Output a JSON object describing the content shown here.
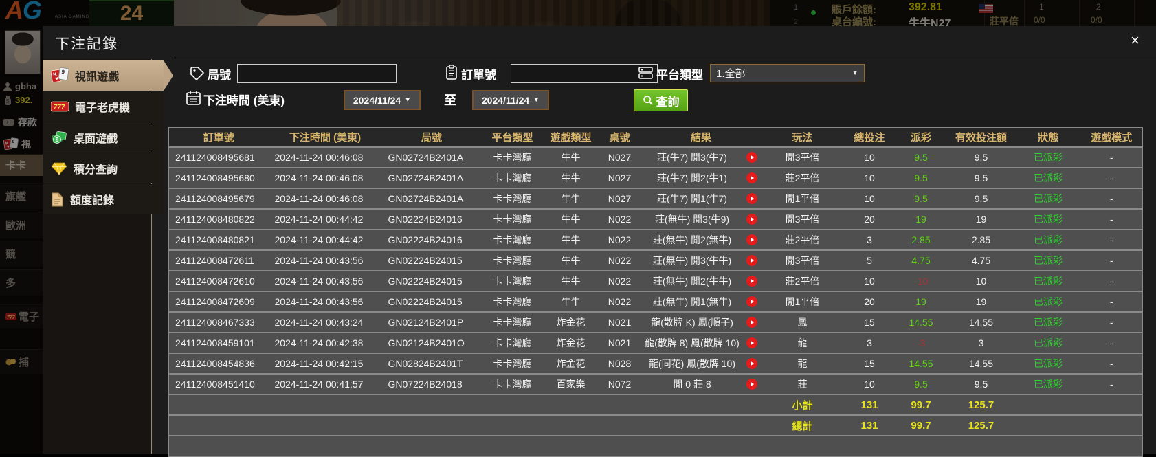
{
  "colors": {
    "gold_header": "#d8b66e",
    "payout_green": "#5fd413",
    "payout_red": "#a23535",
    "status_green": "#30d330",
    "summary_yellow": "#e8e41c",
    "active_tan": "#c2aa8a",
    "search_green": "#65b81f"
  },
  "background": {
    "logo": {
      "a": "A",
      "g": "G",
      "sub": "ASIA GAMING"
    },
    "timer": "24",
    "scoreboard": {
      "row_num_1": "1",
      "row_num_2": "2",
      "balance_label": "賬戶餘額:",
      "balance_value": "392.81",
      "table_label": "桌台編號:",
      "table_value": "牛牛N27",
      "bet_label": "莊平倍",
      "col_1": "1",
      "col_2": "2",
      "val_1": "0/0",
      "val_2": "0/0"
    },
    "sidebar": {
      "username": "gbha",
      "balance": "392.",
      "deposit_label": "存款",
      "video_label": "視",
      "items": [
        {
          "label": "卡卡"
        },
        {
          "label": "旗艦"
        },
        {
          "label": "歐洲"
        },
        {
          "label": "競"
        },
        {
          "label": "多"
        },
        {
          "label": "電子"
        },
        {
          "label": "捕"
        }
      ]
    }
  },
  "modal": {
    "title": "下注記錄",
    "close_label": "×",
    "menu": [
      {
        "label": "視訊遊戲",
        "icon": "cards-icon",
        "active": true
      },
      {
        "label": "電子老虎機",
        "icon": "slot-icon",
        "active": false
      },
      {
        "label": "桌面遊戲",
        "icon": "table-game-icon",
        "active": false
      },
      {
        "label": "積分查詢",
        "icon": "diamond-icon",
        "active": false
      },
      {
        "label": "額度記錄",
        "icon": "document-icon",
        "active": false
      }
    ],
    "filters": {
      "round_label": "局號",
      "round_value": "",
      "order_label": "訂單號",
      "order_value": "",
      "platform_label": "平台類型",
      "platform_value": "1.全部",
      "time_label": "下注時間 (美東)",
      "date_from": "2024/11/24",
      "to_label": "至",
      "date_to": "2024/11/24",
      "search_label": "查詢"
    },
    "table": {
      "headers": [
        "訂單號",
        "下注時間 (美東)",
        "局號",
        "平台類型",
        "遊戲類型",
        "桌號",
        "結果",
        "玩法",
        "總投注",
        "派彩",
        "有效投注額",
        "狀態",
        "遊戲模式"
      ],
      "rows": [
        {
          "order": "241124008495681",
          "time": "2024-11-24 00:46:08",
          "round": "GN02724B2401A",
          "platform": "卡卡灣廳",
          "game": "牛牛",
          "table": "N027",
          "result": "莊(牛7) 閒3(牛7)",
          "bet_type": "閒3平倍",
          "total": "10",
          "payout": "9.5",
          "payout_color": "green",
          "valid": "9.5",
          "status": "已派彩",
          "mode": "-"
        },
        {
          "order": "241124008495680",
          "time": "2024-11-24 00:46:08",
          "round": "GN02724B2401A",
          "platform": "卡卡灣廳",
          "game": "牛牛",
          "table": "N027",
          "result": "莊(牛7) 閒2(牛1)",
          "bet_type": "莊2平倍",
          "total": "10",
          "payout": "9.5",
          "payout_color": "green",
          "valid": "9.5",
          "status": "已派彩",
          "mode": "-"
        },
        {
          "order": "241124008495679",
          "time": "2024-11-24 00:46:08",
          "round": "GN02724B2401A",
          "platform": "卡卡灣廳",
          "game": "牛牛",
          "table": "N027",
          "result": "莊(牛7) 閒1(牛7)",
          "bet_type": "閒1平倍",
          "total": "10",
          "payout": "9.5",
          "payout_color": "green",
          "valid": "9.5",
          "status": "已派彩",
          "mode": "-"
        },
        {
          "order": "241124008480822",
          "time": "2024-11-24 00:44:42",
          "round": "GN02224B24016",
          "platform": "卡卡灣廳",
          "game": "牛牛",
          "table": "N022",
          "result": "莊(無牛) 閒3(牛9)",
          "bet_type": "閒3平倍",
          "total": "20",
          "payout": "19",
          "payout_color": "green",
          "valid": "19",
          "status": "已派彩",
          "mode": "-"
        },
        {
          "order": "241124008480821",
          "time": "2024-11-24 00:44:42",
          "round": "GN02224B24016",
          "platform": "卡卡灣廳",
          "game": "牛牛",
          "table": "N022",
          "result": "莊(無牛) 閒2(無牛)",
          "bet_type": "莊2平倍",
          "total": "3",
          "payout": "2.85",
          "payout_color": "green",
          "valid": "2.85",
          "status": "已派彩",
          "mode": "-"
        },
        {
          "order": "241124008472611",
          "time": "2024-11-24 00:43:56",
          "round": "GN02224B24015",
          "platform": "卡卡灣廳",
          "game": "牛牛",
          "table": "N022",
          "result": "莊(無牛) 閒3(牛牛)",
          "bet_type": "閒3平倍",
          "total": "5",
          "payout": "4.75",
          "payout_color": "green",
          "valid": "4.75",
          "status": "已派彩",
          "mode": "-"
        },
        {
          "order": "241124008472610",
          "time": "2024-11-24 00:43:56",
          "round": "GN02224B24015",
          "platform": "卡卡灣廳",
          "game": "牛牛",
          "table": "N022",
          "result": "莊(無牛) 閒2(牛牛)",
          "bet_type": "莊2平倍",
          "total": "10",
          "payout": "-10",
          "payout_color": "red",
          "valid": "10",
          "status": "已派彩",
          "mode": "-"
        },
        {
          "order": "241124008472609",
          "time": "2024-11-24 00:43:56",
          "round": "GN02224B24015",
          "platform": "卡卡灣廳",
          "game": "牛牛",
          "table": "N022",
          "result": "莊(無牛) 閒1(無牛)",
          "bet_type": "閒1平倍",
          "total": "20",
          "payout": "19",
          "payout_color": "green",
          "valid": "19",
          "status": "已派彩",
          "mode": "-"
        },
        {
          "order": "241124008467333",
          "time": "2024-11-24 00:43:24",
          "round": "GN02124B2401P",
          "platform": "卡卡灣廳",
          "game": "炸金花",
          "table": "N021",
          "result": "龍(散牌 K) 鳳(順子)",
          "bet_type": "鳳",
          "total": "15",
          "payout": "14.55",
          "payout_color": "green",
          "valid": "14.55",
          "status": "已派彩",
          "mode": "-"
        },
        {
          "order": "241124008459101",
          "time": "2024-11-24 00:42:38",
          "round": "GN02124B2401O",
          "platform": "卡卡灣廳",
          "game": "炸金花",
          "table": "N021",
          "result": "龍(散牌 8) 鳳(散牌 10)",
          "bet_type": "龍",
          "total": "3",
          "payout": "-3",
          "payout_color": "red",
          "valid": "3",
          "status": "已派彩",
          "mode": "-"
        },
        {
          "order": "241124008454836",
          "time": "2024-11-24 00:42:15",
          "round": "GN02824B2401T",
          "platform": "卡卡灣廳",
          "game": "炸金花",
          "table": "N028",
          "result": "龍(同花) 鳳(散牌 10)",
          "bet_type": "龍",
          "total": "15",
          "payout": "14.55",
          "payout_color": "green",
          "valid": "14.55",
          "status": "已派彩",
          "mode": "-"
        },
        {
          "order": "241124008451410",
          "time": "2024-11-24 00:41:57",
          "round": "GN07224B24018",
          "platform": "卡卡灣廳",
          "game": "百家樂",
          "table": "N072",
          "result": "閒 0 莊 8",
          "bet_type": "莊",
          "total": "10",
          "payout": "9.5",
          "payout_color": "green",
          "valid": "9.5",
          "status": "已派彩",
          "mode": "-"
        }
      ],
      "subtotal": {
        "label": "小計",
        "total": "131",
        "payout": "99.7",
        "valid": "125.7"
      },
      "grand_total": {
        "label": "總計",
        "total": "131",
        "payout": "99.7",
        "valid": "125.7"
      }
    }
  }
}
